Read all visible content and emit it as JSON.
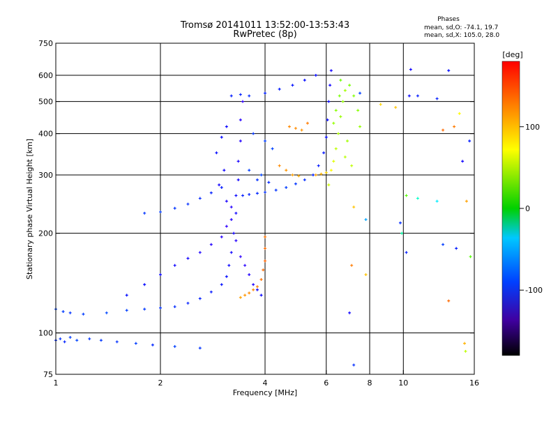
{
  "chart_data": {
    "type": "scatter",
    "title": "Tromsø 20141011 13:52:00-13:53:43",
    "subtitle": "RwPretec (8p)",
    "xlabel": "Frequency [MHz]",
    "ylabel": "Stationary phase Virtual Height [km]",
    "x_scale": "log",
    "y_scale": "log",
    "xlim": [
      1,
      16
    ],
    "ylim": [
      75,
      750
    ],
    "x_ticks": [
      1,
      2,
      4,
      6,
      8,
      10,
      16
    ],
    "x_tick_labels": [
      "1",
      "2",
      "4",
      "6",
      "8",
      "10",
      "16"
    ],
    "x_grid": [
      2,
      4,
      6,
      8,
      10
    ],
    "y_ticks": [
      75,
      100,
      200,
      300,
      400,
      500,
      600,
      750
    ],
    "y_tick_labels": [
      "75",
      "100",
      "200",
      "300",
      "400",
      "500",
      "600",
      "750"
    ],
    "y_grid": [
      100,
      200,
      300,
      400,
      500,
      600
    ],
    "grid": true,
    "legend": {
      "title": "Phases",
      "lines": [
        "mean, sd,O: -74.1, 19.7",
        "mean, sd,X: 105.0, 28.0"
      ],
      "placement": "top-right"
    },
    "colorbar": {
      "label": "[deg]",
      "range": [
        -180,
        180
      ],
      "ticks": [
        100,
        0,
        -100
      ],
      "tick_labels": [
        "100",
        "0",
        "-100"
      ],
      "colormap": "rainbow"
    },
    "series": [
      {
        "name": "",
        "points": [
          [
            1.0,
            95,
            -95
          ],
          [
            1.03,
            96,
            -92
          ],
          [
            1.06,
            94,
            -97
          ],
          [
            1.1,
            97,
            -90
          ],
          [
            1.15,
            95,
            -88
          ],
          [
            1.25,
            96,
            -93
          ],
          [
            1.35,
            95,
            -91
          ],
          [
            1.5,
            94,
            -94
          ],
          [
            1.7,
            93,
            -90
          ],
          [
            1.9,
            92,
            -96
          ],
          [
            2.2,
            91,
            -89
          ],
          [
            2.6,
            90,
            -92
          ],
          [
            1.0,
            118,
            -88
          ],
          [
            1.05,
            116,
            -90
          ],
          [
            1.1,
            115,
            -92
          ],
          [
            1.2,
            114,
            -90
          ],
          [
            1.4,
            115,
            -87
          ],
          [
            1.6,
            117,
            -89
          ],
          [
            1.8,
            118,
            -91
          ],
          [
            2.0,
            119,
            -93
          ],
          [
            2.2,
            120,
            -95
          ],
          [
            2.4,
            123,
            -97
          ],
          [
            2.6,
            127,
            -99
          ],
          [
            2.8,
            133,
            -101
          ],
          [
            3.0,
            140,
            -103
          ],
          [
            3.1,
            148,
            -105
          ],
          [
            3.15,
            160,
            -108
          ],
          [
            3.2,
            175,
            -110
          ],
          [
            3.25,
            200,
            -112
          ],
          [
            3.3,
            230,
            -110
          ],
          [
            3.3,
            260,
            -108
          ],
          [
            3.35,
            290,
            -112
          ],
          [
            3.35,
            330,
            -114
          ],
          [
            3.4,
            380,
            -116
          ],
          [
            3.4,
            440,
            -118
          ],
          [
            3.45,
            500,
            -120
          ],
          [
            3.2,
            520,
            -100
          ],
          [
            3.4,
            525,
            -98
          ],
          [
            3.6,
            520,
            -96
          ],
          [
            4.0,
            530,
            -98
          ],
          [
            4.4,
            545,
            -100
          ],
          [
            4.8,
            560,
            -102
          ],
          [
            5.2,
            580,
            -104
          ],
          [
            5.6,
            600,
            -106
          ],
          [
            3.45,
            260,
            -100
          ],
          [
            3.6,
            262,
            -98
          ],
          [
            3.8,
            264,
            -96
          ],
          [
            4.0,
            266,
            -94
          ],
          [
            4.3,
            270,
            -92
          ],
          [
            4.6,
            275,
            -90
          ],
          [
            4.9,
            282,
            -92
          ],
          [
            5.2,
            290,
            -95
          ],
          [
            5.5,
            300,
            -98
          ],
          [
            5.7,
            320,
            -100
          ],
          [
            5.9,
            350,
            -102
          ],
          [
            6.0,
            390,
            -104
          ],
          [
            6.05,
            440,
            -106
          ],
          [
            6.1,
            500,
            -108
          ],
          [
            6.15,
            560,
            -110
          ],
          [
            6.2,
            620,
            -112
          ],
          [
            1.8,
            230,
            -92
          ],
          [
            2.0,
            232,
            -90
          ],
          [
            2.2,
            238,
            -92
          ],
          [
            2.4,
            245,
            -94
          ],
          [
            2.6,
            255,
            -96
          ],
          [
            2.8,
            265,
            -98
          ],
          [
            3.0,
            275,
            -100
          ],
          [
            1.6,
            130,
            -104
          ],
          [
            1.8,
            140,
            -106
          ],
          [
            2.0,
            150,
            -108
          ],
          [
            2.2,
            160,
            -110
          ],
          [
            2.4,
            168,
            -112
          ],
          [
            2.6,
            175,
            -114
          ],
          [
            2.8,
            185,
            -116
          ],
          [
            3.0,
            195,
            -118
          ],
          [
            3.1,
            210,
            -120
          ],
          [
            3.2,
            240,
            -118
          ],
          [
            3.7,
            400,
            -92
          ],
          [
            4.0,
            380,
            -90
          ],
          [
            4.2,
            360,
            -88
          ],
          [
            3.9,
            300,
            -86
          ],
          [
            3.6,
            310,
            -90
          ],
          [
            3.8,
            290,
            -94
          ],
          [
            4.1,
            285,
            -96
          ],
          [
            2.9,
            350,
            -104
          ],
          [
            3.0,
            390,
            -106
          ],
          [
            3.1,
            420,
            -108
          ],
          [
            3.05,
            310,
            -110
          ],
          [
            2.95,
            280,
            -112
          ],
          [
            3.1,
            250,
            -114
          ],
          [
            3.2,
            220,
            -116
          ],
          [
            3.3,
            190,
            -118
          ],
          [
            3.4,
            170,
            -120
          ],
          [
            3.5,
            160,
            -118
          ],
          [
            3.6,
            150,
            -116
          ],
          [
            3.7,
            140,
            -114
          ],
          [
            3.8,
            135,
            -110
          ],
          [
            3.9,
            130,
            -108
          ]
        ]
      },
      {
        "name": "",
        "points": [
          [
            3.4,
            128,
            135
          ],
          [
            3.5,
            130,
            138
          ],
          [
            3.6,
            132,
            140
          ],
          [
            3.7,
            135,
            142
          ],
          [
            3.8,
            138,
            145
          ],
          [
            3.9,
            145,
            148
          ],
          [
            3.95,
            155,
            150
          ],
          [
            4.0,
            165,
            152
          ],
          [
            4.0,
            180,
            150
          ],
          [
            4.0,
            195,
            148
          ],
          [
            4.4,
            320,
            140
          ],
          [
            4.6,
            310,
            138
          ],
          [
            4.8,
            300,
            135
          ],
          [
            5.0,
            298,
            132
          ],
          [
            4.7,
            420,
            142
          ],
          [
            4.9,
            415,
            140
          ],
          [
            5.1,
            410,
            138
          ],
          [
            5.3,
            430,
            145
          ],
          [
            5.6,
            300,
            135
          ],
          [
            5.8,
            302,
            130
          ],
          [
            6.0,
            305,
            120
          ],
          [
            6.2,
            310,
            110
          ],
          [
            6.3,
            330,
            100
          ],
          [
            6.4,
            360,
            90
          ],
          [
            6.5,
            400,
            85
          ],
          [
            6.6,
            450,
            80
          ],
          [
            6.7,
            500,
            78
          ],
          [
            6.8,
            540,
            82
          ],
          [
            6.4,
            470,
            75
          ],
          [
            6.3,
            430,
            78
          ],
          [
            6.55,
            520,
            70
          ],
          [
            6.6,
            580,
            68
          ],
          [
            7.0,
            560,
            70
          ],
          [
            7.2,
            520,
            72
          ],
          [
            7.4,
            470,
            75
          ],
          [
            7.5,
            420,
            78
          ],
          [
            6.9,
            380,
            82
          ],
          [
            6.8,
            340,
            88
          ],
          [
            7.1,
            320,
            90
          ],
          [
            6.1,
            280,
            95
          ]
        ]
      },
      {
        "name": "",
        "points": [
          [
            10.5,
            625,
            -110
          ],
          [
            13.5,
            620,
            -105
          ],
          [
            11.0,
            520,
            -100
          ],
          [
            12.5,
            510,
            -98
          ],
          [
            9.5,
            480,
            125
          ],
          [
            14.5,
            460,
            110
          ],
          [
            8.6,
            490,
            120
          ],
          [
            7.5,
            530,
            -90
          ],
          [
            14.0,
            420,
            145
          ],
          [
            13.0,
            410,
            150
          ],
          [
            15.5,
            380,
            -100
          ],
          [
            14.8,
            330,
            -110
          ],
          [
            10.2,
            260,
            60
          ],
          [
            11.0,
            255,
            -20
          ],
          [
            12.5,
            250,
            -40
          ],
          [
            15.2,
            250,
            135
          ],
          [
            7.2,
            240,
            125
          ],
          [
            7.8,
            220,
            -60
          ],
          [
            9.8,
            215,
            -95
          ],
          [
            9.9,
            200,
            -10
          ],
          [
            13.0,
            185,
            -90
          ],
          [
            14.2,
            180,
            -100
          ],
          [
            10.2,
            175,
            -98
          ],
          [
            15.6,
            170,
            60
          ],
          [
            7.1,
            160,
            145
          ],
          [
            7.8,
            150,
            125
          ],
          [
            13.5,
            125,
            150
          ],
          [
            7.0,
            115,
            -110
          ],
          [
            15.0,
            93,
            130
          ],
          [
            15.1,
            88,
            90
          ],
          [
            7.2,
            80,
            -95
          ],
          [
            10.4,
            520,
            -108
          ]
        ]
      }
    ]
  }
}
